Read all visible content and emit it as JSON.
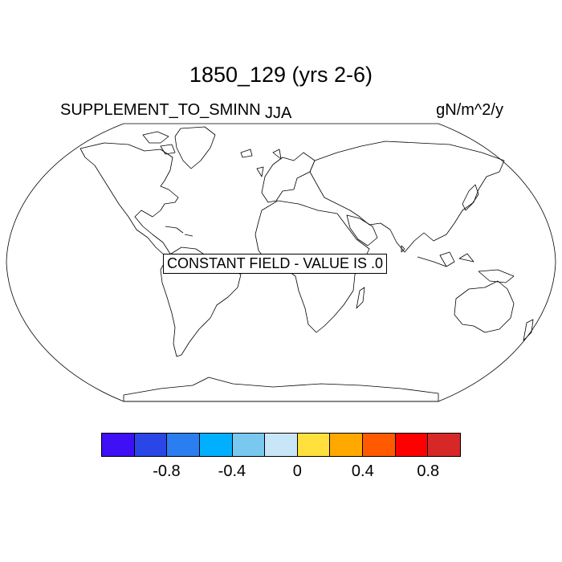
{
  "header": {
    "title": "1850_129 (yrs 2-6)",
    "variable": "SUPPLEMENT_TO_SMINN",
    "season": "JJA",
    "units": "gN/m^2/y"
  },
  "map": {
    "projection": "robinson",
    "message": "CONSTANT FIELD - VALUE IS .0"
  },
  "colorbar": {
    "colors": [
      "#3f0ff5",
      "#2a46e6",
      "#2a7ef0",
      "#00b0ff",
      "#78c8f0",
      "#c8e6f8",
      "#ffe03c",
      "#ffa800",
      "#ff5a00",
      "#ff0000",
      "#d72828"
    ],
    "tick_labels": [
      "-0.8",
      "-0.4",
      "0",
      "0.4",
      "0.8"
    ]
  }
}
